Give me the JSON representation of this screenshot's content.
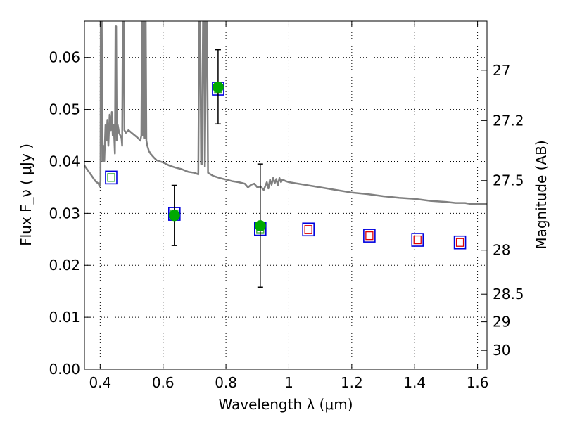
{
  "chart_data": {
    "type": "scatter",
    "title": "",
    "xlabel": "Wavelength  λ (μm)",
    "ylabel": "Flux  F_ν  ( μJy )",
    "ylabel_right": "Magnitude (AB)",
    "xlim": [
      0.35,
      1.63
    ],
    "ylim": [
      0.0,
      0.067
    ],
    "grid": true,
    "legend": "none",
    "x_ticks": [
      {
        "value": 0.4,
        "label": "0.4"
      },
      {
        "value": 0.6,
        "label": "0.6"
      },
      {
        "value": 0.8,
        "label": "0.8"
      },
      {
        "value": 1.0,
        "label": "1"
      },
      {
        "value": 1.2,
        "label": "1.2"
      },
      {
        "value": 1.4,
        "label": "1.4"
      },
      {
        "value": 1.6,
        "label": "1.6"
      }
    ],
    "y_ticks": [
      {
        "value": 0.0,
        "label": "0.00"
      },
      {
        "value": 0.01,
        "label": "0.01"
      },
      {
        "value": 0.02,
        "label": "0.02"
      },
      {
        "value": 0.03,
        "label": "0.03"
      },
      {
        "value": 0.04,
        "label": "0.04"
      },
      {
        "value": 0.05,
        "label": "0.05"
      },
      {
        "value": 0.06,
        "label": "0.06"
      }
    ],
    "mag_ticks": [
      {
        "value": 27,
        "label": "27"
      },
      {
        "value": 27.2,
        "label": "27.2"
      },
      {
        "value": 27.5,
        "label": "27.5"
      },
      {
        "value": 28,
        "label": "28"
      },
      {
        "value": 28.5,
        "label": "28.5"
      },
      {
        "value": 29,
        "label": "29"
      },
      {
        "value": 30,
        "label": "30"
      }
    ],
    "sed_model": {
      "color": "#808080",
      "points": [
        [
          0.35,
          0.0392
        ],
        [
          0.37,
          0.0375
        ],
        [
          0.385,
          0.0362
        ],
        [
          0.395,
          0.0357
        ],
        [
          0.398,
          0.0352
        ],
        [
          0.401,
          0.0362
        ],
        [
          0.402,
          0.067
        ],
        [
          0.405,
          0.067
        ],
        [
          0.407,
          0.04
        ],
        [
          0.41,
          0.043
        ],
        [
          0.413,
          0.04
        ],
        [
          0.417,
          0.047
        ],
        [
          0.42,
          0.044
        ],
        [
          0.423,
          0.048
        ],
        [
          0.426,
          0.043
        ],
        [
          0.43,
          0.049
        ],
        [
          0.434,
          0.046
        ],
        [
          0.437,
          0.0495
        ],
        [
          0.44,
          0.045
        ],
        [
          0.443,
          0.047
        ],
        [
          0.447,
          0.0415
        ],
        [
          0.449,
          0.066
        ],
        [
          0.451,
          0.066
        ],
        [
          0.453,
          0.044
        ],
        [
          0.456,
          0.047
        ],
        [
          0.46,
          0.0455
        ],
        [
          0.464,
          0.045
        ],
        [
          0.468,
          0.0445
        ],
        [
          0.47,
          0.043
        ],
        [
          0.472,
          0.067
        ],
        [
          0.475,
          0.067
        ],
        [
          0.477,
          0.046
        ],
        [
          0.482,
          0.0455
        ],
        [
          0.49,
          0.046
        ],
        [
          0.5,
          0.0455
        ],
        [
          0.51,
          0.045
        ],
        [
          0.52,
          0.0445
        ],
        [
          0.528,
          0.044
        ],
        [
          0.531,
          0.045
        ],
        [
          0.533,
          0.067
        ],
        [
          0.535,
          0.045
        ],
        [
          0.537,
          0.067
        ],
        [
          0.539,
          0.0445
        ],
        [
          0.541,
          0.067
        ],
        [
          0.543,
          0.0445
        ],
        [
          0.545,
          0.067
        ],
        [
          0.547,
          0.044
        ],
        [
          0.55,
          0.043
        ],
        [
          0.555,
          0.042
        ],
        [
          0.56,
          0.0415
        ],
        [
          0.57,
          0.0408
        ],
        [
          0.58,
          0.0402
        ],
        [
          0.6,
          0.0398
        ],
        [
          0.62,
          0.0392
        ],
        [
          0.64,
          0.0388
        ],
        [
          0.66,
          0.0385
        ],
        [
          0.68,
          0.038
        ],
        [
          0.7,
          0.0378
        ],
        [
          0.712,
          0.0375
        ],
        [
          0.715,
          0.067
        ],
        [
          0.718,
          0.067
        ],
        [
          0.721,
          0.0395
        ],
        [
          0.724,
          0.0395
        ],
        [
          0.727,
          0.067
        ],
        [
          0.73,
          0.067
        ],
        [
          0.733,
          0.039
        ],
        [
          0.737,
          0.067
        ],
        [
          0.74,
          0.067
        ],
        [
          0.743,
          0.0378
        ],
        [
          0.76,
          0.0372
        ],
        [
          0.78,
          0.0368
        ],
        [
          0.8,
          0.0365
        ],
        [
          0.82,
          0.0362
        ],
        [
          0.84,
          0.036
        ],
        [
          0.86,
          0.0357
        ],
        [
          0.87,
          0.035
        ],
        [
          0.88,
          0.0355
        ],
        [
          0.89,
          0.0357
        ],
        [
          0.9,
          0.035
        ],
        [
          0.91,
          0.0352
        ],
        [
          0.92,
          0.0345
        ],
        [
          0.93,
          0.036
        ],
        [
          0.935,
          0.0348
        ],
        [
          0.94,
          0.0365
        ],
        [
          0.945,
          0.0355
        ],
        [
          0.95,
          0.0368
        ],
        [
          0.955,
          0.0358
        ],
        [
          0.96,
          0.0366
        ],
        [
          0.965,
          0.0354
        ],
        [
          0.97,
          0.0368
        ],
        [
          0.975,
          0.036
        ],
        [
          0.98,
          0.0365
        ],
        [
          0.99,
          0.0362
        ],
        [
          1.0,
          0.036
        ],
        [
          1.02,
          0.0358
        ],
        [
          1.05,
          0.0355
        ],
        [
          1.08,
          0.0352
        ],
        [
          1.1,
          0.035
        ],
        [
          1.15,
          0.0345
        ],
        [
          1.2,
          0.034
        ],
        [
          1.25,
          0.0337
        ],
        [
          1.3,
          0.0333
        ],
        [
          1.35,
          0.033
        ],
        [
          1.4,
          0.0328
        ],
        [
          1.45,
          0.0324
        ],
        [
          1.5,
          0.0322
        ],
        [
          1.53,
          0.032
        ],
        [
          1.56,
          0.032
        ],
        [
          1.58,
          0.0318
        ],
        [
          1.6,
          0.0318
        ],
        [
          1.63,
          0.0318
        ]
      ]
    },
    "model_photometry": {
      "outer_color": "#0000dd",
      "points": [
        {
          "x": 0.435,
          "y": 0.0369,
          "inner_color": "#33aa33"
        },
        {
          "x": 0.636,
          "y": 0.0299,
          "inner_color": "#33aa33"
        },
        {
          "x": 0.775,
          "y": 0.054,
          "inner_color": "#33aa33"
        },
        {
          "x": 0.909,
          "y": 0.027,
          "inner_color": "#33aa33"
        },
        {
          "x": 1.062,
          "y": 0.0269,
          "inner_color": "#dd0000"
        },
        {
          "x": 1.256,
          "y": 0.0257,
          "inner_color": "#dd0000"
        },
        {
          "x": 1.409,
          "y": 0.0249,
          "inner_color": "#dd0000"
        },
        {
          "x": 1.544,
          "y": 0.0244,
          "inner_color": "#dd0000"
        }
      ]
    },
    "observed": {
      "color": "#00aa00",
      "points": [
        {
          "x": 0.636,
          "y": 0.0296,
          "err_low": 0.0238,
          "err_high": 0.0354
        },
        {
          "x": 0.775,
          "y": 0.0543,
          "err_low": 0.0472,
          "err_high": 0.0615
        },
        {
          "x": 0.909,
          "y": 0.0276,
          "err_low": 0.0158,
          "err_high": 0.0395
        }
      ]
    }
  }
}
